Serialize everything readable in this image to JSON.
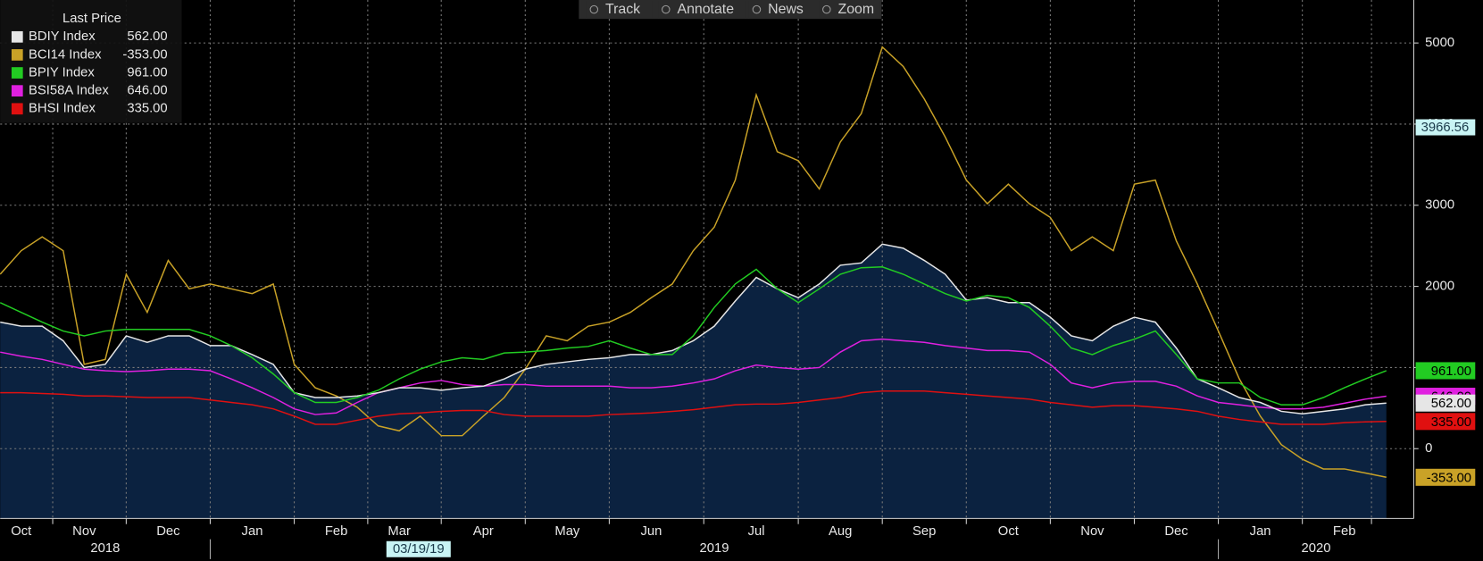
{
  "chart_data": {
    "type": "line",
    "legend_title": "Last Price",
    "toolbar": [
      "Track",
      "Annotate",
      "News",
      "Zoom"
    ],
    "categories": [
      null,
      "Oct",
      null,
      null,
      "Nov",
      null,
      null,
      null,
      "Dec",
      null,
      null,
      null,
      "Jan",
      null,
      null,
      null,
      "Feb",
      null,
      null,
      "Mar",
      null,
      null,
      null,
      "Apr",
      null,
      null,
      null,
      "May",
      null,
      null,
      null,
      "Jun",
      null,
      null,
      null,
      null,
      "Jul",
      null,
      null,
      null,
      "Aug",
      null,
      null,
      null,
      "Sep",
      null,
      null,
      null,
      "Oct",
      null,
      null,
      null,
      "Nov",
      null,
      null,
      null,
      "Dec",
      null,
      null,
      null,
      "Jan",
      null,
      null,
      null,
      "Feb",
      null,
      null
    ],
    "x_groups": [
      "2018",
      "2019",
      "2020"
    ],
    "ylim": [
      -860,
      5530
    ],
    "yticks": [
      0,
      1000,
      2000,
      3000,
      4000,
      5000
    ],
    "grid": true,
    "crosshair": {
      "value": 3966.56,
      "label": "3966.56",
      "date": "03/19/19"
    },
    "series": [
      {
        "name": "BDIY Index",
        "color": "#e6e6e6",
        "fill": "#0b2240",
        "last_label": "562.00",
        "values": [
          1560,
          1510,
          1510,
          1330,
          1000,
          1040,
          1390,
          1310,
          1390,
          1390,
          1270,
          1270,
          1160,
          1040,
          690,
          630,
          630,
          650,
          690,
          750,
          750,
          720,
          750,
          770,
          860,
          980,
          1040,
          1070,
          1100,
          1120,
          1160,
          1160,
          1210,
          1330,
          1510,
          1820,
          2110,
          1970,
          1860,
          2030,
          2260,
          2290,
          2520,
          2470,
          2320,
          2150,
          1830,
          1860,
          1800,
          1800,
          1620,
          1390,
          1330,
          1510,
          1620,
          1560,
          1240,
          860,
          750,
          630,
          570,
          460,
          430,
          460,
          490,
          540,
          562
        ]
      },
      {
        "name": "BCI14 Index",
        "color": "#c9a227",
        "last_label": "-353.00",
        "values": [
          2150,
          2440,
          2610,
          2440,
          1040,
          1100,
          2150,
          1680,
          2320,
          1970,
          2030,
          1970,
          1910,
          2030,
          1040,
          750,
          650,
          510,
          280,
          220,
          400,
          160,
          160,
          400,
          630,
          980,
          1390,
          1330,
          1510,
          1560,
          1680,
          1860,
          2030,
          2440,
          2730,
          3310,
          4360,
          3660,
          3550,
          3200,
          3780,
          4130,
          4950,
          4710,
          4310,
          3840,
          3310,
          3020,
          3260,
          3020,
          2850,
          2440,
          2610,
          2440,
          3260,
          3310,
          2560,
          2030,
          1450,
          860,
          400,
          50,
          -130,
          -250,
          -250,
          -300,
          -353
        ]
      },
      {
        "name": "BPIY Index",
        "color": "#22cc22",
        "last_label": "961.00",
        "values": [
          1800,
          1680,
          1560,
          1450,
          1390,
          1450,
          1470,
          1470,
          1470,
          1470,
          1390,
          1270,
          1120,
          920,
          690,
          570,
          570,
          630,
          720,
          860,
          980,
          1070,
          1120,
          1100,
          1180,
          1190,
          1210,
          1240,
          1260,
          1330,
          1240,
          1160,
          1160,
          1390,
          1740,
          2030,
          2210,
          1970,
          1800,
          1970,
          2150,
          2230,
          2240,
          2150,
          2030,
          1910,
          1820,
          1890,
          1860,
          1740,
          1510,
          1240,
          1160,
          1270,
          1350,
          1450,
          1160,
          860,
          810,
          810,
          630,
          540,
          540,
          630,
          750,
          860,
          961
        ]
      },
      {
        "name": "BSI58A Index",
        "color": "#e020e0",
        "last_label": "646.00",
        "values": [
          1190,
          1140,
          1100,
          1040,
          980,
          960,
          950,
          960,
          980,
          980,
          960,
          860,
          750,
          630,
          490,
          420,
          440,
          570,
          690,
          750,
          810,
          840,
          790,
          770,
          790,
          790,
          770,
          770,
          770,
          770,
          750,
          750,
          770,
          810,
          860,
          960,
          1030,
          1000,
          980,
          1000,
          1190,
          1330,
          1350,
          1330,
          1310,
          1270,
          1240,
          1210,
          1210,
          1190,
          1040,
          810,
          750,
          810,
          830,
          830,
          770,
          650,
          570,
          540,
          510,
          490,
          490,
          510,
          560,
          610,
          646
        ]
      },
      {
        "name": "BHSI Index",
        "color": "#e01010",
        "last_label": "335.00",
        "values": [
          690,
          690,
          680,
          670,
          650,
          650,
          640,
          630,
          630,
          630,
          600,
          570,
          540,
          490,
          400,
          300,
          300,
          350,
          400,
          430,
          440,
          460,
          470,
          470,
          420,
          400,
          400,
          400,
          400,
          420,
          430,
          440,
          460,
          480,
          510,
          540,
          550,
          550,
          570,
          600,
          630,
          690,
          710,
          710,
          710,
          690,
          670,
          650,
          630,
          610,
          570,
          540,
          510,
          530,
          530,
          510,
          490,
          460,
          400,
          360,
          330,
          300,
          300,
          300,
          320,
          330,
          335
        ]
      }
    ]
  }
}
